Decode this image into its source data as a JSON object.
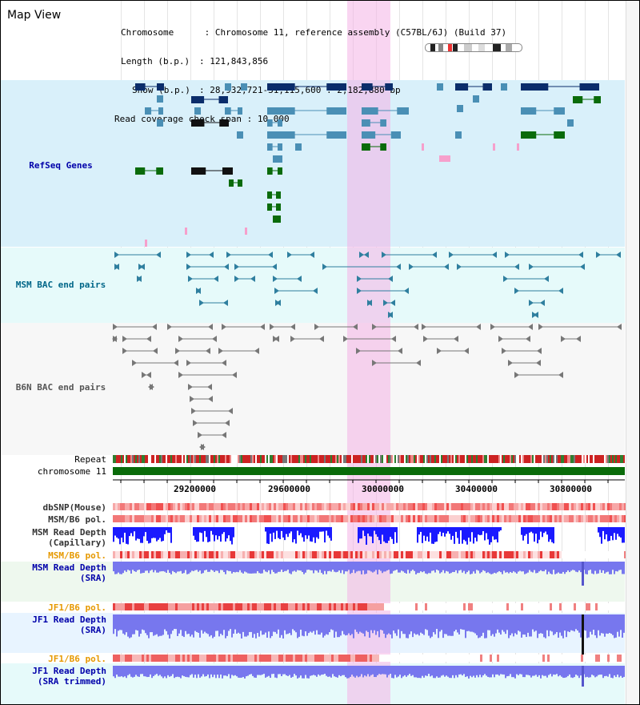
{
  "title": "Map View",
  "info": {
    "chromosome_label": "Chromosome",
    "chromosome_value": "Chromosome 11, reference assembly (C57BL/6J) (Build 37)",
    "length_label": "Length (b.p.)",
    "length_value": "121,843,856",
    "show_label": "Show (b.p.)",
    "show_value": "28,932,721-31,115,600 : 2,182,880 bp",
    "coverage_label": "Read coverage check span",
    "coverage_value": "10,000"
  },
  "tracks": {
    "refseq": "RefSeq Genes",
    "msm_bac": "MSM BAC end pairs",
    "b6n_bac": "B6N BAC end pairs",
    "repeat": "Repeat",
    "chromosome": "chromosome 11",
    "dbsnp": "dbSNP(Mouse)",
    "msm_b6_pol_1": "MSM/B6 pol.",
    "msm_read_depth_cap_1": "MSM Read Depth",
    "msm_read_depth_cap_2": "(Capillary)",
    "msm_b6_pol_2": "MSM/B6 pol.",
    "msm_read_depth_sra_1": "MSM Read Depth",
    "msm_read_depth_sra_2": "(SRA)",
    "jf1_b6_pol_1": "JF1/B6 pol.",
    "jf1_read_depth_1": "JF1 Read Depth",
    "jf1_read_depth_2": "(SRA)",
    "jf1_b6_pol_2": "JF1/B6 pol.",
    "jf1_read_depth_trim_1": "JF1 Read Depth",
    "jf1_read_depth_trim_2": "(SRA trimmed)"
  },
  "axis_ticks": [
    "29200000",
    "29600000",
    "30000000",
    "30400000",
    "30800000"
  ],
  "colors": {
    "refseq_bg": "#d9f0fa",
    "bac_bg": "#e6fafa",
    "gene_dark": "#0b2d6b",
    "gene_mid": "#4a8fb5",
    "gene_green": "#0a6b0a",
    "highlight": "#f4b3e6",
    "depth_blue": "#1a1aff",
    "depth_light": "#7777ee",
    "label_blue": "#0000aa",
    "label_orange": "#e69900",
    "label_teal": "#006688"
  }
}
